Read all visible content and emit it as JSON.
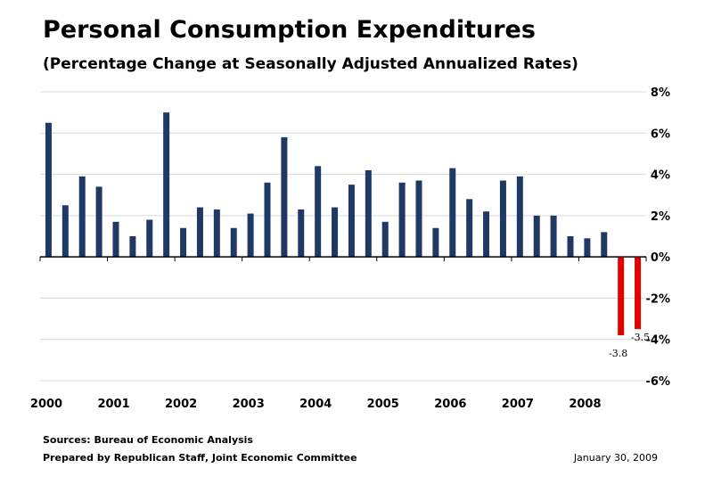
{
  "chart_data": {
    "type": "bar",
    "title": "Personal Consumption Expenditures",
    "subtitle": "(Percentage Change at Seasonally Adjusted Annualized Rates)",
    "ylim": [
      -6,
      8
    ],
    "yticks": [
      8,
      6,
      4,
      2,
      0,
      -2,
      -4,
      -6
    ],
    "ytick_labels": [
      "8%",
      "6%",
      "4%",
      "2%",
      "0%",
      "-2%",
      "-4%",
      "-6%"
    ],
    "grid": true,
    "year_labels": [
      "2000",
      "2001",
      "2002",
      "2003",
      "2004",
      "2005",
      "2006",
      "2007",
      "2008"
    ],
    "quarters_per_year": 4,
    "values": [
      6.5,
      2.5,
      3.9,
      3.4,
      1.7,
      1.0,
      1.8,
      7.0,
      1.4,
      2.4,
      2.3,
      1.4,
      2.1,
      3.6,
      5.8,
      2.3,
      4.4,
      2.4,
      3.5,
      4.2,
      1.7,
      3.6,
      3.7,
      1.4,
      4.3,
      2.8,
      2.2,
      3.7,
      3.9,
      2.0,
      2.0,
      1.0,
      0.9,
      1.2,
      -3.8,
      -3.5
    ],
    "data_labels": [
      {
        "index": 34,
        "text": "-3.8"
      },
      {
        "index": 35,
        "text": "-3.5"
      }
    ],
    "colors": {
      "positive": "#1f3864",
      "negative": "#e00000",
      "grid": "#d9d9d9",
      "axis": "#000000"
    }
  },
  "footer": {
    "sources": "Sources: Bureau of Economic Analysis",
    "prepared": "Prepared by Republican Staff, Joint Economic Committee",
    "date": "January 30, 2009"
  }
}
